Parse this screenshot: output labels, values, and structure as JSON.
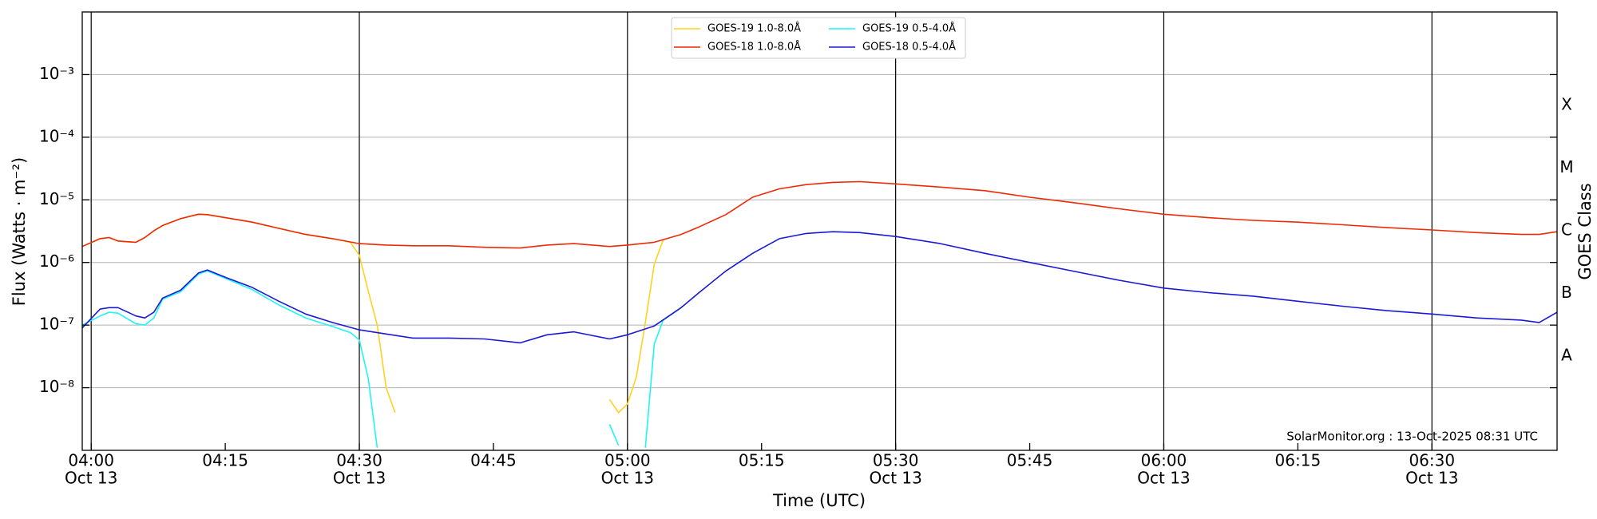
{
  "chart_data": {
    "type": "line",
    "y_label": "Flux (Watts · m⁻²)",
    "x_label": "Time (UTC)",
    "y2_label": "GOES Class",
    "annotation": "SolarMonitor.org : 13-Oct-2025 08:31 UTC",
    "log_scale": true,
    "grid": true,
    "legend": "top",
    "xlim": [
      "03:59",
      "06:44"
    ],
    "xticks": [
      {
        "value": "04:00",
        "label": [
          "04:00",
          "Oct 13"
        ]
      },
      "04:15",
      {
        "value": "04:30",
        "label": [
          "04:30",
          "Oct 13"
        ]
      },
      "04:45",
      {
        "value": "05:00",
        "label": [
          "05:00",
          "Oct 13"
        ]
      },
      "05:15",
      {
        "value": "05:30",
        "label": [
          "05:30",
          "Oct 13"
        ]
      },
      "05:45",
      {
        "value": "06:00",
        "label": [
          "06:00",
          "Oct 13"
        ]
      },
      "06:15",
      {
        "value": "06:30",
        "label": [
          "06:30",
          "Oct 13"
        ]
      }
    ],
    "ylim": [
      1e-09,
      0.01
    ],
    "yticks": [
      {
        "value": 1e-08,
        "label": "10⁻⁸"
      },
      {
        "value": 1e-07,
        "label": "10⁻⁷"
      },
      {
        "value": 1e-06,
        "label": "10⁻⁶"
      },
      {
        "value": 1e-05,
        "label": "10⁻⁵"
      },
      {
        "value": 0.0001,
        "label": "10⁻⁴"
      },
      {
        "value": 0.001,
        "label": "10⁻³"
      }
    ],
    "y2lim": [
      1e-09,
      0.01
    ],
    "y2ticks": [
      {
        "value": 3.2e-08,
        "label": "A"
      },
      {
        "value": 3.2e-07,
        "label": "B"
      },
      {
        "value": 3.2e-06,
        "label": "C"
      },
      {
        "value": 3.2e-05,
        "label": "M"
      },
      {
        "value": 0.00032,
        "label": "X"
      }
    ],
    "series": [
      {
        "name": "GOES-19 1.0-8.0Å",
        "color": "#ffd21f",
        "x": [
          "03:59",
          "04:01",
          "04:02",
          "04:03",
          "04:05",
          "04:06",
          "04:07",
          "04:08",
          "04:10",
          "04:12",
          "04:13",
          "04:15",
          "04:18",
          "04:21",
          "04:24",
          "04:27",
          "04:29",
          "04:30",
          "04:31",
          "04:32",
          "04:33",
          "04:34",
          null,
          "04:58",
          "04:59",
          "05:00",
          "05:01",
          "05:02",
          "05:03",
          "05:04"
        ],
        "values": [
          1.8e-06,
          2.4e-06,
          2.5e-06,
          2.2e-06,
          2.1e-06,
          2.5e-06,
          3.2e-06,
          3.9e-06,
          5e-06,
          5.9e-06,
          5.8e-06,
          5.2e-06,
          4.4e-06,
          3.5e-06,
          2.8e-06,
          2.4e-06,
          2.1e-06,
          1.3e-06,
          3.5e-07,
          1e-07,
          1e-08,
          4e-09,
          null,
          6.5e-09,
          4e-09,
          5.5e-09,
          1.5e-08,
          1.1e-07,
          9.4e-07,
          2.3e-06
        ]
      },
      {
        "name": "GOES-18 1.0-8.0Å",
        "color": "#ee2a05",
        "x": [
          "03:59",
          "04:01",
          "04:02",
          "04:03",
          "04:05",
          "04:06",
          "04:07",
          "04:08",
          "04:10",
          "04:12",
          "04:13",
          "04:15",
          "04:18",
          "04:21",
          "04:24",
          "04:27",
          "04:30",
          "04:33",
          "04:36",
          "04:40",
          "04:44",
          "04:48",
          "04:51",
          "04:54",
          "04:58",
          "05:00",
          "05:03",
          "05:06",
          "05:08",
          "05:11",
          "05:14",
          "05:17",
          "05:20",
          "05:23",
          "05:26",
          "05:30",
          "05:35",
          "05:40",
          "05:45",
          "05:50",
          "05:55",
          "06:00",
          "06:05",
          "06:10",
          "06:15",
          "06:20",
          "06:25",
          "06:30",
          "06:35",
          "06:40",
          "06:42",
          "06:44"
        ],
        "values": [
          1.8e-06,
          2.4e-06,
          2.5e-06,
          2.2e-06,
          2.1e-06,
          2.5e-06,
          3.2e-06,
          3.9e-06,
          5e-06,
          5.9e-06,
          5.8e-06,
          5.2e-06,
          4.4e-06,
          3.5e-06,
          2.8e-06,
          2.4e-06,
          2e-06,
          1.9e-06,
          1.85e-06,
          1.85e-06,
          1.75e-06,
          1.7e-06,
          1.9e-06,
          2e-06,
          1.8e-06,
          1.9e-06,
          2.1e-06,
          2.8e-06,
          3.7e-06,
          5.8e-06,
          1.1e-05,
          1.5e-05,
          1.75e-05,
          1.9e-05,
          1.95e-05,
          1.8e-05,
          1.6e-05,
          1.4e-05,
          1.1e-05,
          9e-06,
          7.2e-06,
          5.9e-06,
          5.2e-06,
          4.7e-06,
          4.4e-06,
          4e-06,
          3.6e-06,
          3.3e-06,
          3e-06,
          2.8e-06,
          2.8e-06,
          3.1e-06
        ]
      },
      {
        "name": "GOES-19 0.5-4.0Å",
        "color": "#1ff5f5",
        "x": [
          "03:59",
          "04:01",
          "04:02",
          "04:03",
          "04:05",
          "04:06",
          "04:07",
          "04:08",
          "04:10",
          "04:12",
          "04:13",
          "04:15",
          "04:18",
          "04:21",
          "04:24",
          "04:27",
          "04:29",
          "04:30",
          "04:31",
          "04:32",
          null,
          "04:58",
          "04:59",
          null,
          "05:02",
          "05:03",
          "05:04",
          "05:06"
        ],
        "values": [
          1e-07,
          1.4e-07,
          1.6e-07,
          1.55e-07,
          1.05e-07,
          1e-07,
          1.3e-07,
          2.6e-07,
          3.4e-07,
          6.5e-07,
          7.3e-07,
          5.6e-07,
          3.7e-07,
          2.1e-07,
          1.3e-07,
          9.5e-08,
          7.6e-08,
          5.8e-08,
          1.4e-08,
          1.1e-09,
          null,
          2.6e-09,
          1.2e-09,
          null,
          1.1e-09,
          5e-08,
          1.2e-07,
          1.9e-07
        ]
      },
      {
        "name": "GOES-18 0.5-4.0Å",
        "color": "#1a1ad6",
        "x": [
          "03:59",
          "04:01",
          "04:02",
          "04:03",
          "04:05",
          "04:06",
          "04:07",
          "04:08",
          "04:10",
          "04:12",
          "04:13",
          "04:15",
          "04:18",
          "04:21",
          "04:24",
          "04:27",
          "04:30",
          "04:33",
          "04:36",
          "04:40",
          "04:44",
          "04:48",
          "04:51",
          "04:54",
          "04:58",
          "05:00",
          "05:03",
          "05:06",
          "05:08",
          "05:11",
          "05:14",
          "05:17",
          "05:20",
          "05:23",
          "05:26",
          "05:30",
          "05:35",
          "05:40",
          "05:45",
          "05:50",
          "05:55",
          "06:00",
          "06:05",
          "06:10",
          "06:15",
          "06:20",
          "06:25",
          "06:30",
          "06:35",
          "06:40",
          "06:42",
          "06:44"
        ],
        "values": [
          9e-08,
          1.8e-07,
          1.9e-07,
          1.9e-07,
          1.4e-07,
          1.3e-07,
          1.6e-07,
          2.7e-07,
          3.6e-07,
          6.8e-07,
          7.6e-07,
          5.8e-07,
          4e-07,
          2.4e-07,
          1.5e-07,
          1.1e-07,
          8.4e-08,
          7.2e-08,
          6.2e-08,
          6.2e-08,
          6e-08,
          5.2e-08,
          7e-08,
          7.8e-08,
          6e-08,
          7e-08,
          9.7e-08,
          1.9e-07,
          3.3e-07,
          7.3e-07,
          1.4e-06,
          2.4e-06,
          2.9e-06,
          3.1e-06,
          3e-06,
          2.6e-06,
          2e-06,
          1.4e-06,
          1e-06,
          7.2e-07,
          5.2e-07,
          3.9e-07,
          3.3e-07,
          2.9e-07,
          2.4e-07,
          2e-07,
          1.7e-07,
          1.5e-07,
          1.3e-07,
          1.2e-07,
          1.1e-07,
          1.6e-07
        ]
      }
    ]
  }
}
